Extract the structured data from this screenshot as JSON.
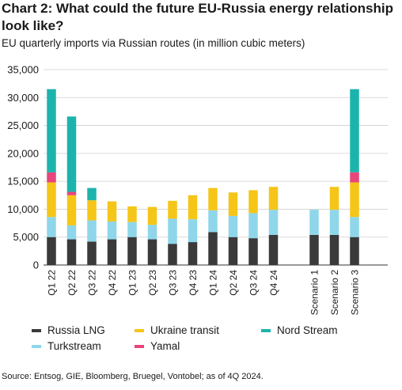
{
  "title": "Chart 2: What could the future EU-Russia energy relationship look like?",
  "subtitle": "EU quarterly imports via Russian routes (in million cubic meters)",
  "source": "Source: Entsog, GIE, Bloomberg, Bruegel, Vontobel; as of 4Q 2024.",
  "colors": {
    "Russia LNG": "#3a3a3a",
    "Turkstream": "#8fd6ea",
    "Ukraine transit": "#f5c518",
    "Yamal": "#e8457a",
    "Nord Stream": "#1db3ad"
  },
  "legend": [
    {
      "name": "Russia LNG",
      "color": "#3a3a3a"
    },
    {
      "name": "Ukraine transit",
      "color": "#f5c518"
    },
    {
      "name": "Nord Stream",
      "color": "#1db3ad"
    },
    {
      "name": "Turkstream",
      "color": "#8fd6ea"
    },
    {
      "name": "Yamal",
      "color": "#e8457a"
    }
  ],
  "chart_data": {
    "type": "bar",
    "stacked": true,
    "categories": [
      "Q1 22",
      "Q2 22",
      "Q3 22",
      "Q4 22",
      "Q1 23",
      "Q2 23",
      "Q3 23",
      "Q4 23",
      "Q1 24",
      "Q2 24",
      "Q3 24",
      "Q4 24",
      "Scenario 1",
      "Scenario 2",
      "Scenario 3"
    ],
    "gap_after_index": 11,
    "ylim": [
      0,
      35000
    ],
    "yticks": [
      0,
      5000,
      10000,
      15000,
      20000,
      25000,
      30000,
      35000
    ],
    "ytick_labels": [
      "0",
      "5,000",
      "10,000",
      "15,000",
      "20,000",
      "25,000",
      "30,000",
      "35,000"
    ],
    "grid": true,
    "series": [
      {
        "name": "Russia LNG",
        "values": [
          5000,
          4600,
          4200,
          4600,
          5000,
          4600,
          3800,
          4100,
          5900,
          5000,
          4800,
          5400,
          5400,
          5400,
          5000
        ]
      },
      {
        "name": "Turkstream",
        "values": [
          3600,
          2500,
          3800,
          3200,
          2700,
          2600,
          4500,
          4100,
          3900,
          3800,
          4500,
          4500,
          4500,
          4500,
          3600
        ]
      },
      {
        "name": "Ukraine transit",
        "values": [
          6200,
          5400,
          3600,
          3600,
          2800,
          3200,
          3200,
          4300,
          4000,
          4200,
          4100,
          4100,
          0,
          4100,
          6200
        ]
      },
      {
        "name": "Yamal",
        "values": [
          1800,
          600,
          0,
          0,
          0,
          0,
          0,
          0,
          0,
          0,
          0,
          0,
          0,
          0,
          1800
        ]
      },
      {
        "name": "Nord Stream",
        "values": [
          14900,
          13500,
          2200,
          0,
          0,
          0,
          0,
          0,
          0,
          0,
          0,
          0,
          0,
          0,
          14900
        ]
      }
    ]
  }
}
